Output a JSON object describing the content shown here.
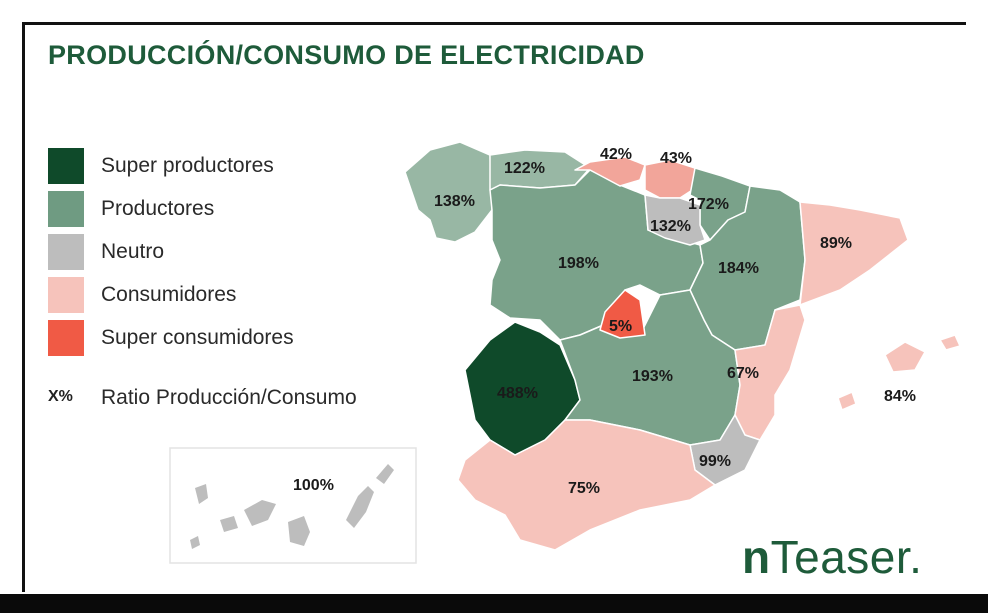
{
  "title": "PRODUCCIÓN/CONSUMO DE ELECTRICIDAD",
  "legend": [
    {
      "label": "Super productores",
      "color": "#0f4a2a"
    },
    {
      "label": "Productores",
      "color": "#6f9b82"
    },
    {
      "label": "Neutro",
      "color": "#bdbdbd"
    },
    {
      "label": "Consumidores",
      "color": "#f6c3bb"
    },
    {
      "label": "Super consumidores",
      "color": "#f05a45"
    }
  ],
  "ratio_legend": {
    "symbol": "X%",
    "label": "Ratio Producción/Consumo"
  },
  "colors": {
    "title": "#1e5b3a",
    "productores_light": "#98b7a4",
    "productores_mid": "#7aa28a",
    "consumidores_mid": "#f2a59a",
    "border": "#ffffff"
  },
  "regions": [
    {
      "id": "galicia",
      "value": "138%"
    },
    {
      "id": "asturias",
      "value": "122%"
    },
    {
      "id": "cantabria",
      "value": "42%"
    },
    {
      "id": "pais-vasco",
      "value": "43%"
    },
    {
      "id": "navarra",
      "value": "172%"
    },
    {
      "id": "la-rioja",
      "value": "132%"
    },
    {
      "id": "castilla-y-leon",
      "value": "198%"
    },
    {
      "id": "aragon",
      "value": "184%"
    },
    {
      "id": "cataluna",
      "value": "89%"
    },
    {
      "id": "madrid",
      "value": "5%"
    },
    {
      "id": "extremadura",
      "value": "488%"
    },
    {
      "id": "castilla-la-mancha",
      "value": "193%"
    },
    {
      "id": "valencia",
      "value": "67%"
    },
    {
      "id": "baleares",
      "value": "84%"
    },
    {
      "id": "murcia",
      "value": "99%"
    },
    {
      "id": "andalucia",
      "value": "75%"
    },
    {
      "id": "canarias",
      "value": "100%"
    }
  ],
  "brand": {
    "initial": "n",
    "rest": "Teaser."
  }
}
